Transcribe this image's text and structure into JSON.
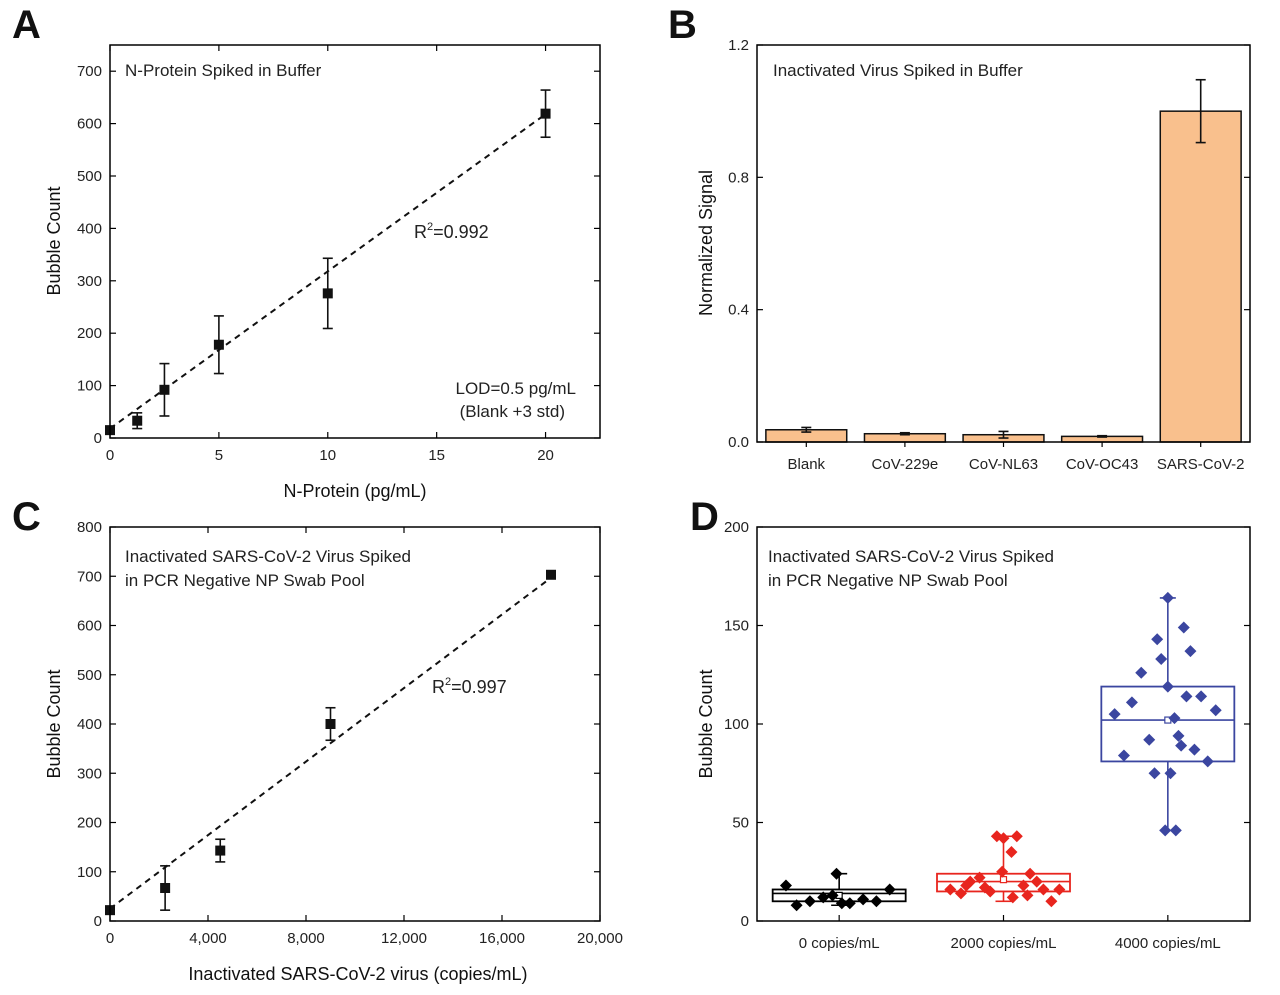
{
  "chart_data": [
    {
      "panel": "A",
      "type": "scatter",
      "xlabel": "N-Protein (pg/mL)",
      "ylabel": "Bubble Count",
      "xlim": [
        0,
        22.5
      ],
      "ylim": [
        0,
        750
      ],
      "xticks": [
        0,
        5,
        10,
        15,
        20
      ],
      "yticks": [
        0,
        100,
        200,
        300,
        400,
        500,
        600,
        700
      ],
      "points": [
        {
          "x": 0,
          "y": 15,
          "err": 0
        },
        {
          "x": 1.25,
          "y": 33,
          "err": 15
        },
        {
          "x": 2.5,
          "y": 92,
          "err": 50
        },
        {
          "x": 5,
          "y": 178,
          "err": 55
        },
        {
          "x": 10,
          "y": 276,
          "err": 67
        },
        {
          "x": 20,
          "y": 619,
          "err": 45
        }
      ],
      "fit": {
        "x": [
          0,
          20
        ],
        "y": [
          18,
          618
        ]
      },
      "annotations": {
        "inset_title": "N-Protein Spiked in Buffer",
        "r2_base": "R",
        "r2_sup": "2",
        "r2_value": "=0.992",
        "lod_line1": "LOD=0.5 pg/mL",
        "lod_line2": "(Blank +3 std)"
      }
    },
    {
      "panel": "B",
      "type": "bar",
      "xlabel": "",
      "ylabel": "Normalized Signal",
      "ylim": [
        0,
        1.2
      ],
      "yticks": [
        0.0,
        0.4,
        0.8,
        1.2
      ],
      "ytick_labels": [
        "0.0",
        "0.4",
        "0.8",
        "1.2"
      ],
      "categories": [
        "Blank",
        "CoV-229e",
        "CoV-NL63",
        "CoV-OC43",
        "SARS-CoV-2"
      ],
      "values": [
        0.037,
        0.025,
        0.022,
        0.017,
        1.0
      ],
      "errors": [
        0.007,
        0.003,
        0.01,
        0.002,
        0.095
      ],
      "bar_color": "#f9c08d",
      "annotations": {
        "inset_title": "Inactivated Virus Spiked in Buffer"
      }
    },
    {
      "panel": "C",
      "type": "scatter",
      "xlabel": "Inactivated SARS-CoV-2 virus (copies/mL)",
      "ylabel": "Bubble Count",
      "xlim": [
        0,
        20000
      ],
      "ylim": [
        0,
        800
      ],
      "xticks": [
        0,
        4000,
        8000,
        12000,
        16000,
        20000
      ],
      "xtick_labels": [
        "0",
        "4,000",
        "8,000",
        "12,000",
        "16,000",
        "20,000"
      ],
      "yticks": [
        0,
        100,
        200,
        300,
        400,
        500,
        600,
        700,
        800
      ],
      "points": [
        {
          "x": 0,
          "y": 22,
          "err": 8
        },
        {
          "x": 2250,
          "y": 67,
          "err": 45
        },
        {
          "x": 4500,
          "y": 143,
          "err": 23
        },
        {
          "x": 9000,
          "y": 400,
          "err": 33
        },
        {
          "x": 18000,
          "y": 703,
          "err": 8
        }
      ],
      "fit": {
        "x": [
          0,
          18000
        ],
        "y": [
          25,
          697
        ]
      },
      "annotations": {
        "inset_title_line1": "Inactivated SARS-CoV-2 Virus Spiked",
        "inset_title_line2": "in PCR Negative NP Swab Pool",
        "r2_base": "R",
        "r2_sup": "2",
        "r2_value": "=0.997"
      }
    },
    {
      "panel": "D",
      "type": "box",
      "xlabel": "",
      "ylabel": "Bubble Count",
      "ylim": [
        0,
        200
      ],
      "yticks": [
        0,
        50,
        100,
        150,
        200
      ],
      "categories": [
        "0 copies/mL",
        "2000 copies/mL",
        "4000 copies/mL"
      ],
      "series": [
        {
          "color": "#000000",
          "q1": 10,
          "median": 14,
          "q3": 16,
          "mean": 13,
          "whisker_low": 8,
          "whisker_high": 24,
          "points": [
            [
              -0.4,
              18
            ],
            [
              -0.32,
              8
            ],
            [
              -0.22,
              10
            ],
            [
              -0.12,
              12
            ],
            [
              -0.02,
              24
            ],
            [
              0.08,
              9
            ],
            [
              0.18,
              11
            ],
            [
              0.28,
              10
            ],
            [
              0.38,
              16
            ],
            [
              -0.05,
              13
            ],
            [
              0.02,
              9
            ]
          ]
        },
        {
          "color": "#e8251e",
          "q1": 15,
          "median": 20,
          "q3": 24,
          "mean": 21,
          "whisker_low": 10,
          "whisker_high": 43,
          "points": [
            [
              -0.4,
              16
            ],
            [
              -0.32,
              14
            ],
            [
              -0.25,
              20
            ],
            [
              -0.18,
              22
            ],
            [
              -0.1,
              15
            ],
            [
              -0.05,
              43
            ],
            [
              0.0,
              42
            ],
            [
              0.06,
              35
            ],
            [
              0.1,
              43
            ],
            [
              0.15,
              18
            ],
            [
              0.2,
              24
            ],
            [
              0.25,
              20
            ],
            [
              0.3,
              16
            ],
            [
              0.36,
              10
            ],
            [
              0.42,
              16
            ],
            [
              -0.14,
              17
            ],
            [
              -0.01,
              25
            ],
            [
              0.07,
              12
            ],
            [
              0.18,
              13
            ],
            [
              -0.28,
              18
            ]
          ]
        },
        {
          "color": "#3b46a0",
          "q1": 81,
          "median": 102,
          "q3": 119,
          "mean": 102,
          "whisker_low": 46,
          "whisker_high": 164,
          "points": [
            [
              -0.4,
              105
            ],
            [
              -0.33,
              84
            ],
            [
              -0.27,
              111
            ],
            [
              -0.2,
              126
            ],
            [
              -0.14,
              92
            ],
            [
              -0.08,
              143
            ],
            [
              -0.05,
              133
            ],
            [
              0.0,
              119
            ],
            [
              0.02,
              75
            ],
            [
              0.05,
              103
            ],
            [
              0.08,
              94
            ],
            [
              0.12,
              149
            ],
            [
              0.14,
              114
            ],
            [
              0.17,
              137
            ],
            [
              0.2,
              87
            ],
            [
              0.25,
              114
            ],
            [
              0.3,
              81
            ],
            [
              0.36,
              107
            ],
            [
              -0.1,
              75
            ],
            [
              0.1,
              89
            ],
            [
              -0.02,
              46
            ],
            [
              0.06,
              46
            ],
            [
              0.0,
              164
            ]
          ]
        }
      ],
      "annotations": {
        "inset_title_line1": "Inactivated SARS-CoV-2 Virus Spiked",
        "inset_title_line2": "in PCR Negative NP Swab Pool"
      }
    }
  ],
  "panel_labels": [
    "A",
    "B",
    "C",
    "D"
  ]
}
